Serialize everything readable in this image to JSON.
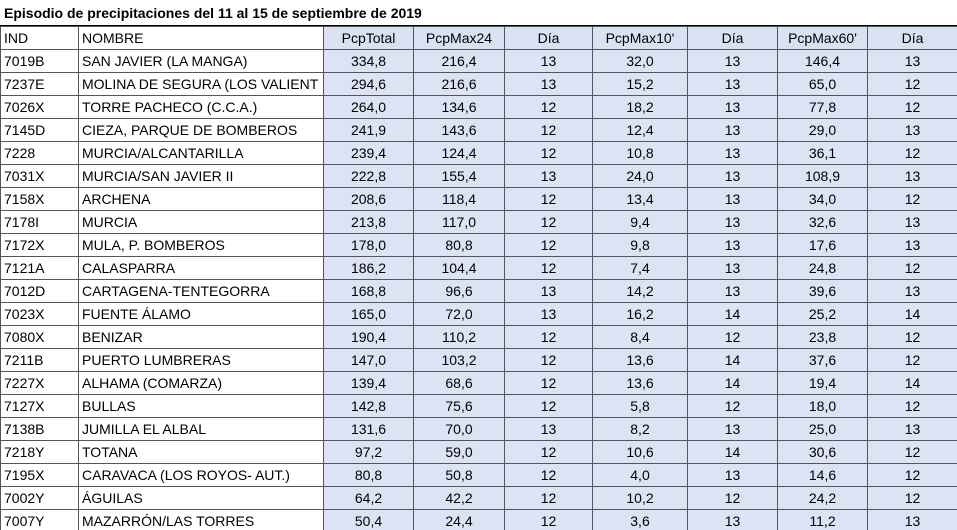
{
  "title": "Episodio de precipitaciones del 11 al 15 de septiembre de 2019",
  "headers": [
    "IND",
    "NOMBRE",
    "PcpTotal",
    "PcpMax24",
    "Día",
    "PcpMax10'",
    "Día",
    "PcpMax60'",
    "Día"
  ],
  "rows": [
    [
      "7019B",
      "SAN JAVIER (LA MANGA)",
      "334,8",
      "216,4",
      "13",
      "32,0",
      "13",
      "146,4",
      "13"
    ],
    [
      "7237E",
      "MOLINA DE SEGURA (LOS VALIENT",
      "294,6",
      "216,6",
      "13",
      "15,2",
      "13",
      "65,0",
      "12"
    ],
    [
      "7026X",
      "TORRE PACHECO (C.C.A.)",
      "264,0",
      "134,6",
      "12",
      "18,2",
      "13",
      "77,8",
      "12"
    ],
    [
      "7145D",
      "CIEZA, PARQUE DE BOMBEROS",
      "241,9",
      "143,6",
      "12",
      "12,4",
      "13",
      "29,0",
      "13"
    ],
    [
      "7228",
      "MURCIA/ALCANTARILLA",
      "239,4",
      "124,4",
      "12",
      "10,8",
      "13",
      "36,1",
      "12"
    ],
    [
      "7031X",
      "MURCIA/SAN JAVIER II",
      "222,8",
      "155,4",
      "13",
      "24,0",
      "13",
      "108,9",
      "13"
    ],
    [
      "7158X",
      "ARCHENA",
      "208,6",
      "118,4",
      "12",
      "13,4",
      "13",
      "34,0",
      "12"
    ],
    [
      "7178I",
      "MURCIA",
      "213,8",
      "117,0",
      "12",
      "9,4",
      "13",
      "32,6",
      "13"
    ],
    [
      "7172X",
      "MULA, P. BOMBEROS",
      "178,0",
      "80,8",
      "12",
      "9,8",
      "13",
      "17,6",
      "13"
    ],
    [
      "7121A",
      "CALASPARRA",
      "186,2",
      "104,4",
      "12",
      "7,4",
      "13",
      "24,8",
      "12"
    ],
    [
      "7012D",
      "CARTAGENA-TENTEGORRA",
      "168,8",
      "96,6",
      "13",
      "14,2",
      "13",
      "39,6",
      "13"
    ],
    [
      "7023X",
      "FUENTE ÁLAMO",
      "165,0",
      "72,0",
      "13",
      "16,2",
      "14",
      "25,2",
      "14"
    ],
    [
      "7080X",
      "BENIZAR",
      "190,4",
      "110,2",
      "12",
      "8,4",
      "12",
      "23,8",
      "12"
    ],
    [
      "7211B",
      "PUERTO LUMBRERAS",
      "147,0",
      "103,2",
      "12",
      "13,6",
      "14",
      "37,6",
      "12"
    ],
    [
      "7227X",
      "ALHAMA (COMARZA)",
      "139,4",
      "68,6",
      "12",
      "13,6",
      "14",
      "19,4",
      "14"
    ],
    [
      "7127X",
      "BULLAS",
      "142,8",
      "75,6",
      "12",
      "5,8",
      "12",
      "18,0",
      "12"
    ],
    [
      "7138B",
      "JUMILLA EL ALBAL",
      "131,6",
      "70,0",
      "13",
      "8,2",
      "13",
      "25,0",
      "13"
    ],
    [
      "7218Y",
      "TOTANA",
      "97,2",
      "59,0",
      "12",
      "10,6",
      "14",
      "30,6",
      "12"
    ],
    [
      "7195X",
      "CARAVACA (LOS ROYOS- AUT.)",
      "80,8",
      "50,8",
      "12",
      "4,0",
      "13",
      "14,6",
      "12"
    ],
    [
      "7002Y",
      "ÁGUILAS",
      "64,2",
      "42,2",
      "12",
      "10,2",
      "12",
      "24,2",
      "12"
    ],
    [
      "7007Y",
      "MAZARRÓN/LAS TORRES",
      "50,4",
      "24,4",
      "12",
      "3,6",
      "13",
      "11,2",
      "13"
    ]
  ]
}
